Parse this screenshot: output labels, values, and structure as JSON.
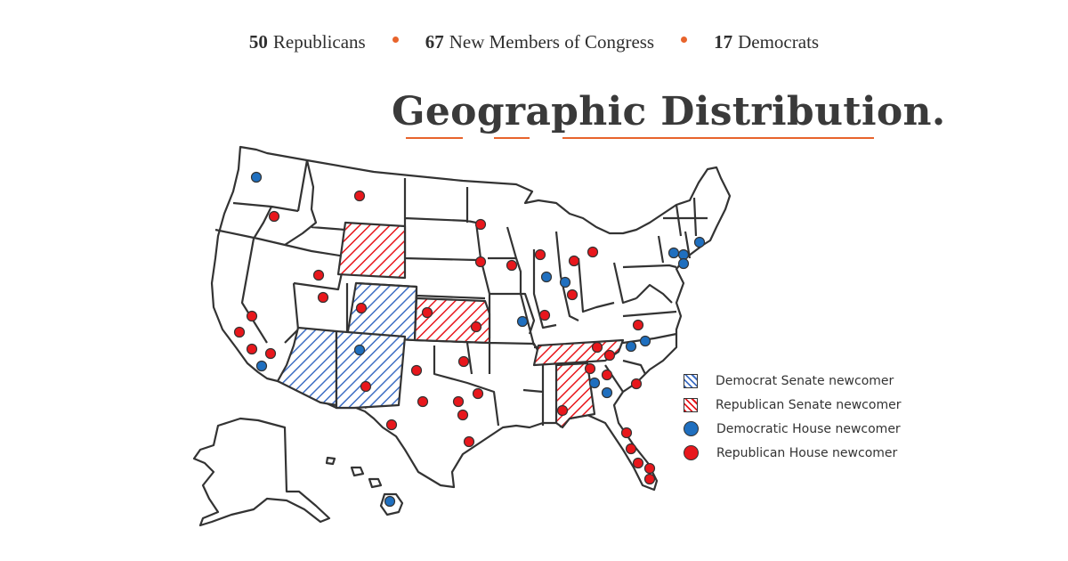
{
  "stats": {
    "republicans_num": "50",
    "republicans_label": "Republicans",
    "total_num": "67",
    "total_label": "New Members of Congress",
    "democrats_num": "17",
    "democrats_label": "Democrats"
  },
  "title": "Geographic Distribution.",
  "legend": {
    "dem_senate": "Democrat Senate newcomer",
    "rep_senate": "Republican Senate newcomer",
    "dem_house": "Democratic House newcomer",
    "rep_house": "Republican House newcomer"
  },
  "colors": {
    "democrat": "#1f6fbf",
    "republican": "#e8171c",
    "accent": "#e8642c",
    "outline": "#333333"
  },
  "states": {
    "dem_senate": [
      "Colorado",
      "Arizona",
      "New Mexico"
    ],
    "rep_senate": [
      "Wyoming",
      "Kansas",
      "Tennessee",
      "Alabama"
    ]
  }
}
